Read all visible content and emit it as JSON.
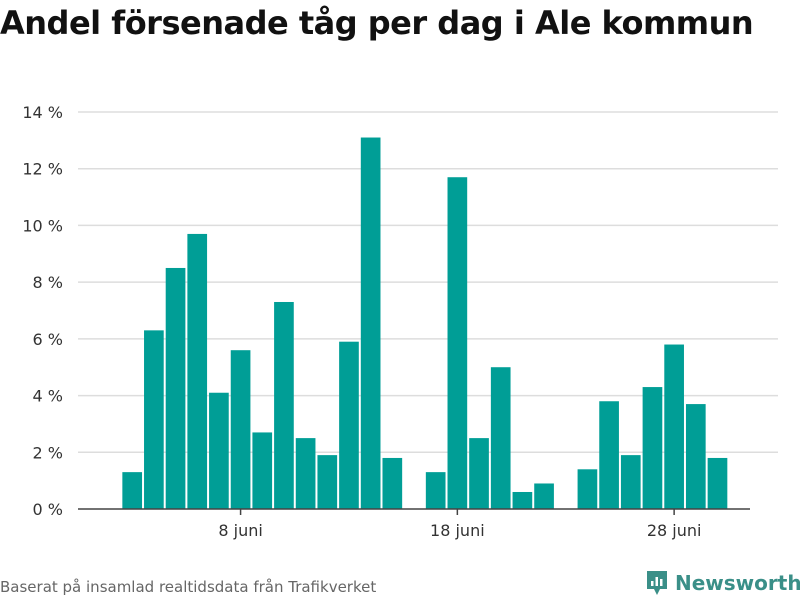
{
  "title": "Andel försenade tåg per dag i Ale kommun",
  "source": "Baserat på insamlad realtidsdata från Trafikverket",
  "brand": "Newsworthy",
  "chart_data": {
    "type": "bar",
    "title": "Andel försenade tåg per dag i Ale kommun",
    "xlabel": "",
    "ylabel": "",
    "ylim": [
      0,
      14
    ],
    "yticks": [
      0,
      2,
      4,
      6,
      8,
      10,
      12,
      14
    ],
    "ytick_labels": [
      "0 %",
      "2 %",
      "4 %",
      "6 %",
      "8 %",
      "10 %",
      "12 %",
      "14 %"
    ],
    "x_start_day": 1,
    "x_end_day": 31,
    "xticks": [
      8,
      18,
      28
    ],
    "xtick_labels": [
      "8 juni",
      "18 juni",
      "28 juni"
    ],
    "grid": true,
    "color": "#009e96",
    "points": [
      {
        "day": 3,
        "value": 1.3
      },
      {
        "day": 4,
        "value": 6.3
      },
      {
        "day": 5,
        "value": 8.5
      },
      {
        "day": 6,
        "value": 9.7
      },
      {
        "day": 7,
        "value": 4.1
      },
      {
        "day": 8,
        "value": 5.6
      },
      {
        "day": 9,
        "value": 2.7
      },
      {
        "day": 10,
        "value": 7.3
      },
      {
        "day": 11,
        "value": 2.5
      },
      {
        "day": 12,
        "value": 1.9
      },
      {
        "day": 13,
        "value": 5.9
      },
      {
        "day": 14,
        "value": 13.1
      },
      {
        "day": 15,
        "value": 1.8
      },
      {
        "day": 17,
        "value": 1.3
      },
      {
        "day": 18,
        "value": 11.7
      },
      {
        "day": 19,
        "value": 2.5
      },
      {
        "day": 20,
        "value": 5.0
      },
      {
        "day": 21,
        "value": 0.6
      },
      {
        "day": 22,
        "value": 0.9
      },
      {
        "day": 24,
        "value": 1.4
      },
      {
        "day": 25,
        "value": 3.8
      },
      {
        "day": 26,
        "value": 1.9
      },
      {
        "day": 27,
        "value": 4.3
      },
      {
        "day": 28,
        "value": 5.8
      },
      {
        "day": 29,
        "value": 3.7
      },
      {
        "day": 30,
        "value": 1.8
      }
    ]
  }
}
